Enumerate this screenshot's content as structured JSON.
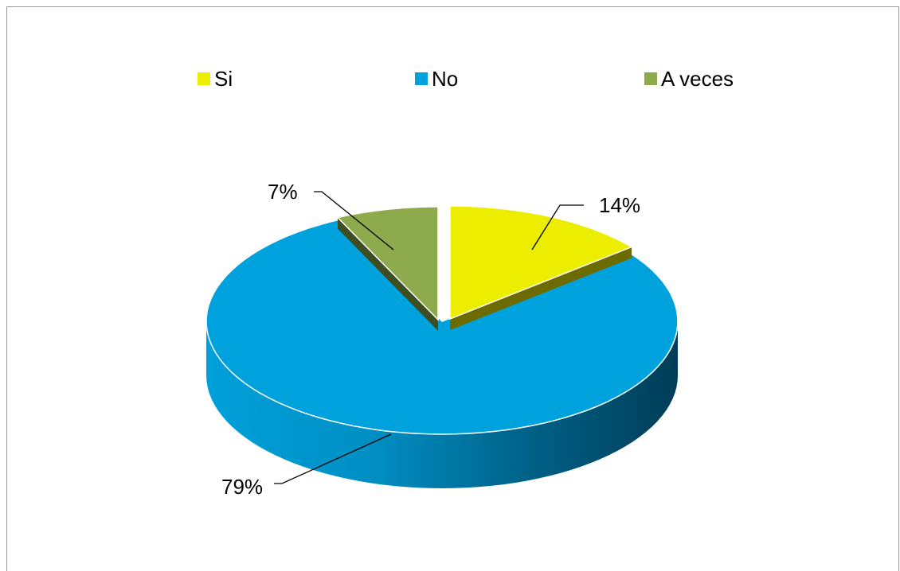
{
  "chart_data": {
    "type": "pie",
    "style": "3d",
    "categories": [
      "Si",
      "No",
      "A veces"
    ],
    "values": [
      14,
      79,
      7
    ],
    "data_labels": [
      "14%",
      "79%",
      "7%"
    ],
    "colors": [
      "#EDED00",
      "#00A2DD",
      "#8DAA4C"
    ],
    "legend_position": "top",
    "exploded": [
      "Si",
      "A veces"
    ]
  }
}
